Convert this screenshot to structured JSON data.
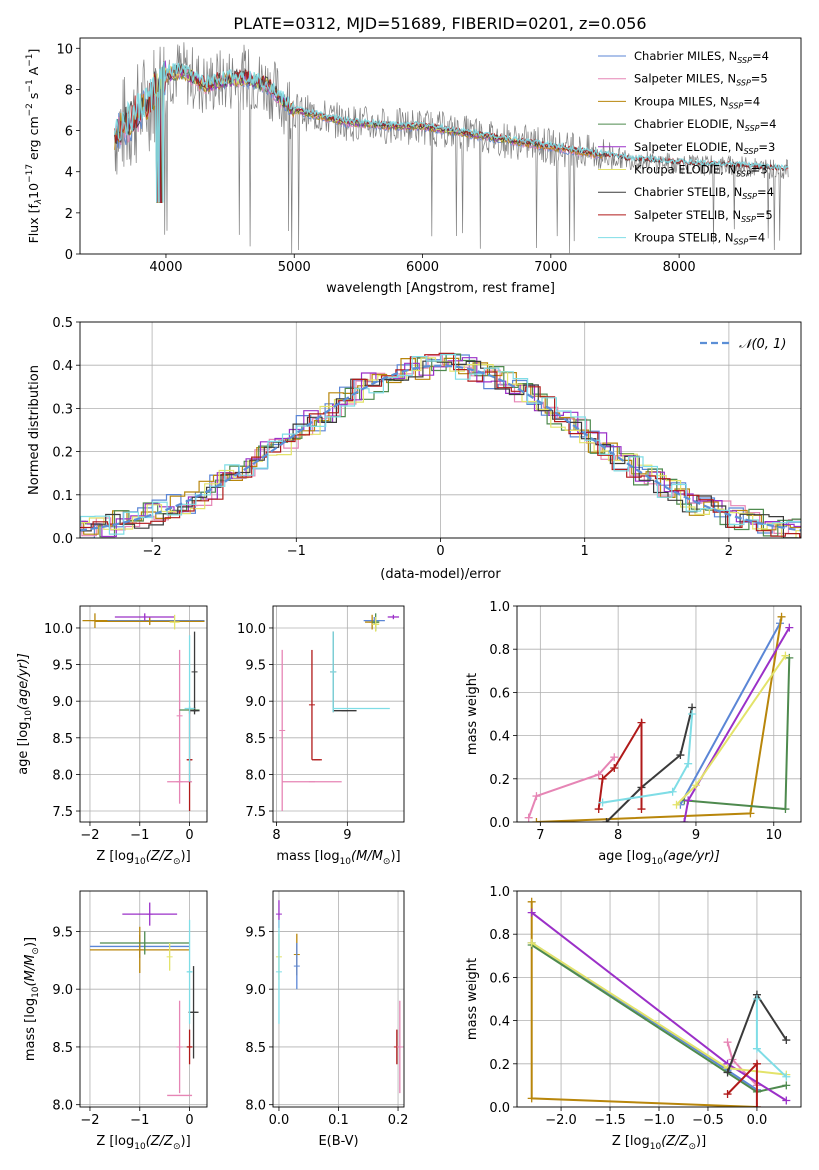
{
  "title": "PLATE=0312, MJD=51689, FIBERID=0201, z=0.056",
  "colors": {
    "Chabrier MILES": "#5b86d6",
    "Salpeter MILES": "#e685b5",
    "Kroupa MILES": "#b8860b",
    "Chabrier ELODIE": "#4e8a4e",
    "Salpeter ELODIE": "#9b30c8",
    "Kroupa ELODIE": "#e3e36a",
    "Chabrier STELIB": "#3a3a3a",
    "Salpeter STELIB": "#b01a1a",
    "Kroupa STELIB": "#7fdde6",
    "data": "#7f7f7f"
  },
  "chart_data": [
    {
      "id": "spectrum",
      "type": "line",
      "xlabel": "wavelength [Angstrom, rest frame]",
      "ylabel_main": "Flux [f",
      "ylabel_sub": "λ",
      "ylabel_rest": "10",
      "ylabel_exp": "−17",
      "ylabel_tail": " erg cm",
      "ylabel_exp2": "−2",
      "ylabel_tail2": " s",
      "ylabel_exp3": "−1",
      "ylabel_tail3": " A",
      "ylabel_exp4": "−1",
      "ylabel_end": "]",
      "xlim": [
        3330,
        8950
      ],
      "ylim": [
        0,
        10.5
      ],
      "xticks": [
        4000,
        5000,
        6000,
        7000,
        8000
      ],
      "yticks": [
        0,
        2,
        4,
        6,
        8,
        10
      ],
      "grid": false,
      "legend_position": "top-right",
      "continuum": {
        "x": [
          3600,
          3700,
          3800,
          3900,
          4000,
          4100,
          4200,
          4300,
          4400,
          4500,
          4600,
          4700,
          4800,
          4900,
          5000,
          5200,
          5400,
          5600,
          5800,
          6000,
          6200,
          6400,
          6600,
          6800,
          7000,
          7200,
          7400,
          7600,
          7800,
          8000,
          8200,
          8400,
          8600,
          8800
        ],
        "y": [
          6.0,
          6.3,
          7.0,
          7.8,
          8.7,
          8.9,
          8.6,
          8.2,
          8.4,
          8.5,
          8.6,
          8.4,
          8.2,
          7.5,
          7.0,
          6.7,
          6.4,
          6.3,
          6.2,
          6.2,
          6.0,
          5.8,
          5.6,
          5.4,
          5.2,
          5.0,
          4.8,
          4.6,
          4.5,
          4.4,
          4.3,
          4.3,
          4.2,
          4.1
        ]
      },
      "legend": [
        {
          "label": "Chabrier MILES, N",
          "sub": "SSP",
          "tail": "=4",
          "color_key": "Chabrier MILES"
        },
        {
          "label": "Salpeter MILES, N",
          "sub": "SSP",
          "tail": "=5",
          "color_key": "Salpeter MILES"
        },
        {
          "label": "Kroupa MILES, N",
          "sub": "SSP",
          "tail": "=4",
          "color_key": "Kroupa MILES"
        },
        {
          "label": "Chabrier ELODIE, N",
          "sub": "SSP",
          "tail": "=4",
          "color_key": "Chabrier ELODIE"
        },
        {
          "label": "Salpeter ELODIE, N",
          "sub": "SSP",
          "tail": "=3",
          "color_key": "Salpeter ELODIE"
        },
        {
          "label": "Kroupa ELODIE, N",
          "sub": "SSP",
          "tail": "=3",
          "color_key": "Kroupa ELODIE"
        },
        {
          "label": "Chabrier STELIB, N",
          "sub": "SSP",
          "tail": "=4",
          "color_key": "Chabrier STELIB"
        },
        {
          "label": "Salpeter STELIB, N",
          "sub": "SSP",
          "tail": "=5",
          "color_key": "Salpeter STELIB"
        },
        {
          "label": "Kroupa STELIB, N",
          "sub": "SSP",
          "tail": "=4",
          "color_key": "Kroupa STELIB"
        }
      ]
    },
    {
      "id": "residuals",
      "type": "histogram",
      "xlabel": "(data-model)/error",
      "ylabel": "Normed distribution",
      "xlim": [
        -2.5,
        2.5
      ],
      "ylim": [
        0,
        0.5
      ],
      "xticks": [
        -2,
        -1,
        0,
        1,
        2
      ],
      "yticks": [
        0.0,
        0.1,
        0.2,
        0.3,
        0.4,
        0.5
      ],
      "grid": true,
      "bin_width": 0.1,
      "normal_label": "𝒩(0, 1)",
      "normal_color": "#5b8fd6",
      "legend_position": "top-right"
    },
    {
      "id": "age_vs_Z",
      "type": "errorbar",
      "xlabel": "Z [log",
      "xlabel_sub": "10",
      "xlabel_tail": "(Z/Z",
      "xlabel_odot": "⊙",
      "xlabel_end": ")]",
      "ylabel": "age  [log",
      "ylabel_sub": "10",
      "ylabel_tail": "(age/yr)]",
      "xlim": [
        -2.2,
        0.35
      ],
      "ylim": [
        7.35,
        10.3
      ],
      "xticks": [
        -2,
        -1,
        0
      ],
      "yticks": [
        7.5,
        8.0,
        8.5,
        9.0,
        9.5,
        10.0
      ],
      "grid": true,
      "points": [
        {
          "model": "Chabrier MILES",
          "x": -0.8,
          "xerr": 1.1,
          "y": 10.1,
          "yerr": 0.05
        },
        {
          "model": "Salpeter MILES",
          "x": -0.2,
          "xerr": 0.25,
          "y": 7.9,
          "yerr": 0.3
        },
        {
          "model": "Salpeter MILES",
          "x": -0.2,
          "xerr": 0.0,
          "y": 8.8,
          "yerr": 0.9
        },
        {
          "model": "Kroupa MILES",
          "x": -1.9,
          "xerr": 0.25,
          "y": 10.1,
          "yerr": 0.1
        },
        {
          "model": "Kroupa MILES",
          "x": -0.8,
          "xerr": 1.1,
          "y": 10.09,
          "yerr": 0.05
        },
        {
          "model": "Chabrier ELODIE",
          "x": 0.0,
          "xerr": 0.2,
          "y": 8.88,
          "yerr": 0.05
        },
        {
          "model": "Salpeter ELODIE",
          "x": -0.9,
          "xerr": 0.6,
          "y": 10.15,
          "yerr": 0.05
        },
        {
          "model": "Kroupa ELODIE",
          "x": -0.3,
          "xerr": 0.1,
          "y": 10.08,
          "yerr": 0.1
        },
        {
          "model": "Chabrier STELIB",
          "x": 0.1,
          "xerr": 0.1,
          "y": 8.87,
          "yerr": 0.05
        },
        {
          "model": "Chabrier STELIB",
          "x": 0.1,
          "xerr": 0.0,
          "y": 9.4,
          "yerr": 0.55
        },
        {
          "model": "Salpeter STELIB",
          "x": 0.0,
          "xerr": 0.05,
          "y": 8.2,
          "yerr": 0.7
        },
        {
          "model": "Kroupa STELIB",
          "x": 0.0,
          "xerr": 0.1,
          "y": 8.9,
          "yerr": 1.0
        }
      ]
    },
    {
      "id": "age_vs_mass",
      "type": "errorbar",
      "xlabel": "mass [log",
      "xlabel_sub": "10",
      "xlabel_tail": "(M/M",
      "xlabel_odot": "⊙",
      "xlabel_end": ")]",
      "ylabel": "",
      "xlim": [
        7.95,
        9.8
      ],
      "ylim": [
        7.35,
        10.3
      ],
      "xticks": [
        8,
        9
      ],
      "yticks": [
        7.5,
        8.0,
        8.5,
        9.0,
        9.5,
        10.0
      ],
      "grid": true,
      "points": [
        {
          "model": "Salpeter MILES",
          "x": 8.5,
          "xerr": 0.42,
          "y": 7.9,
          "yerr": 0.0
        },
        {
          "model": "Salpeter MILES",
          "x": 8.08,
          "xerr": 0.0,
          "y": 8.6,
          "yerr": 1.1
        },
        {
          "model": "Salpeter STELIB",
          "x": 8.5,
          "xerr": 0.0,
          "y": 8.95,
          "yerr": 0.75
        },
        {
          "model": "Salpeter STELIB",
          "x": 8.57,
          "xerr": 0.07,
          "y": 8.2,
          "yerr": 0.0
        },
        {
          "model": "Chabrier STELIB",
          "x": 8.8,
          "xerr": 0.0,
          "y": 9.4,
          "yerr": 0.55
        },
        {
          "model": "Chabrier STELIB",
          "x": 8.96,
          "xerr": 0.17,
          "y": 8.87,
          "yerr": 0.0
        },
        {
          "model": "Kroupa STELIB",
          "x": 9.2,
          "xerr": 0.4,
          "y": 8.9,
          "yerr": 0.0
        },
        {
          "model": "Kroupa STELIB",
          "x": 8.8,
          "xerr": 0.0,
          "y": 9.4,
          "yerr": 0.55
        },
        {
          "model": "Chabrier MILES",
          "x": 9.38,
          "xerr": 0.15,
          "y": 10.1,
          "yerr": 0.05
        },
        {
          "model": "Kroupa MILES",
          "x": 9.35,
          "xerr": 0.1,
          "y": 10.08,
          "yerr": 0.1
        },
        {
          "model": "Chabrier ELODIE",
          "x": 9.4,
          "xerr": 0.05,
          "y": 10.08,
          "yerr": 0.12
        },
        {
          "model": "Salpeter ELODIE",
          "x": 9.65,
          "xerr": 0.08,
          "y": 10.15,
          "yerr": 0.03
        },
        {
          "model": "Kroupa ELODIE",
          "x": 9.4,
          "xerr": 0.05,
          "y": 10.05,
          "yerr": 0.1
        }
      ]
    },
    {
      "id": "massweight_vs_age",
      "type": "line",
      "xlabel": "age  [log",
      "xlabel_sub": "10",
      "xlabel_tail": "(age/yr)]",
      "ylabel": "mass weight",
      "xlim": [
        6.7,
        10.35
      ],
      "ylim": [
        0,
        1.0
      ],
      "xticks": [
        7,
        8,
        9,
        10
      ],
      "yticks": [
        0.0,
        0.2,
        0.4,
        0.6,
        0.8,
        1.0
      ],
      "grid": true,
      "series": [
        {
          "model": "Chabrier MILES",
          "x": [
            8.8,
            10.08
          ],
          "y": [
            0.08,
            0.92
          ]
        },
        {
          "model": "Salpeter MILES",
          "x": [
            6.85,
            6.95,
            7.75,
            7.95
          ],
          "y": [
            0.02,
            0.12,
            0.22,
            0.3
          ]
        },
        {
          "model": "Kroupa MILES",
          "x": [
            6.95,
            9.7,
            10.1
          ],
          "y": [
            0.0,
            0.04,
            0.95
          ]
        },
        {
          "model": "Chabrier ELODIE",
          "x": [
            8.85,
            10.15,
            10.2
          ],
          "y": [
            0.1,
            0.06,
            0.76
          ]
        },
        {
          "model": "Salpeter ELODIE",
          "x": [
            8.85,
            8.9,
            10.2
          ],
          "y": [
            0.0,
            0.1,
            0.9
          ]
        },
        {
          "model": "Kroupa ELODIE",
          "x": [
            8.75,
            9.0,
            10.15
          ],
          "y": [
            0.08,
            0.17,
            0.77
          ]
        },
        {
          "model": "Chabrier STELIB",
          "x": [
            7.85,
            8.3,
            8.8,
            8.95
          ],
          "y": [
            0.0,
            0.16,
            0.31,
            0.53
          ]
        },
        {
          "model": "Salpeter STELIB",
          "x": [
            7.75,
            7.8,
            7.95,
            8.3,
            8.3
          ],
          "y": [
            0.06,
            0.2,
            0.25,
            0.46,
            0.06
          ]
        },
        {
          "model": "Kroupa STELIB",
          "x": [
            7.8,
            8.7,
            8.9,
            8.95
          ],
          "y": [
            0.09,
            0.14,
            0.27,
            0.5
          ]
        }
      ]
    },
    {
      "id": "mass_vs_Z",
      "type": "errorbar",
      "xlabel": "Z [log",
      "xlabel_sub": "10",
      "xlabel_tail": "(Z/Z",
      "xlabel_odot": "⊙",
      "xlabel_end": ")]",
      "ylabel": "mass [log",
      "ylabel_sub": "10",
      "ylabel_tail": "(M/M",
      "ylabel_odot": "⊙",
      "ylabel_end": ")]",
      "xlim": [
        -2.2,
        0.35
      ],
      "ylim": [
        7.98,
        9.85
      ],
      "xticks": [
        -2,
        -1,
        0
      ],
      "yticks": [
        8.0,
        8.5,
        9.0,
        9.5
      ],
      "grid": true,
      "points": [
        {
          "model": "Chabrier MILES",
          "x": -1.0,
          "xerr": 1.0,
          "y": 9.37,
          "yerr": 0.1
        },
        {
          "model": "Kroupa MILES",
          "x": -1.0,
          "xerr": 1.0,
          "y": 9.34,
          "yerr": 0.2
        },
        {
          "model": "Salpeter MILES",
          "x": -0.2,
          "xerr": 0.25,
          "y": 8.08,
          "yerr": 0.0
        },
        {
          "model": "Salpeter MILES",
          "x": -0.2,
          "xerr": 0.0,
          "y": 8.5,
          "yerr": 0.4
        },
        {
          "model": "Chabrier ELODIE",
          "x": -0.9,
          "xerr": 0.9,
          "y": 9.4,
          "yerr": 0.1
        },
        {
          "model": "Salpeter ELODIE",
          "x": -0.8,
          "xerr": 0.55,
          "y": 9.65,
          "yerr": 0.1
        },
        {
          "model": "Kroupa ELODIE",
          "x": -0.4,
          "xerr": 0.0,
          "y": 9.28,
          "yerr": 0.12
        },
        {
          "model": "Chabrier STELIB",
          "x": 0.08,
          "xerr": 0.1,
          "y": 8.8,
          "yerr": 0.4
        },
        {
          "model": "Salpeter STELIB",
          "x": 0.0,
          "xerr": 0.05,
          "y": 8.5,
          "yerr": 0.15
        },
        {
          "model": "Kroupa STELIB",
          "x": 0.0,
          "xerr": 0.05,
          "y": 9.15,
          "yerr": 0.45
        }
      ]
    },
    {
      "id": "mass_vs_EBV",
      "type": "errorbar",
      "xlabel": "E(B-V)",
      "ylabel": "",
      "xlim": [
        -0.01,
        0.21
      ],
      "ylim": [
        7.98,
        9.85
      ],
      "xticks": [
        0.0,
        0.1,
        0.2
      ],
      "yticks": [
        8.0,
        8.5,
        9.0,
        9.5
      ],
      "grid": true,
      "points": [
        {
          "model": "Salpeter ELODIE",
          "x": 0.0,
          "xerr": 0.0,
          "y": 9.65,
          "yerr": 0.12
        },
        {
          "model": "Kroupa ELODIE",
          "x": 0.0,
          "xerr": 0.0,
          "y": 9.28,
          "yerr": 0.2
        },
        {
          "model": "Kroupa STELIB",
          "x": 0.0,
          "xerr": 0.0,
          "y": 9.15,
          "yerr": 0.45
        },
        {
          "model": "Kroupa MILES",
          "x": 0.03,
          "xerr": 0.0,
          "y": 9.3,
          "yerr": 0.18
        },
        {
          "model": "Chabrier MILES",
          "x": 0.03,
          "xerr": 0.0,
          "y": 9.2,
          "yerr": 0.2
        },
        {
          "model": "Salpeter STELIB",
          "x": 0.198,
          "xerr": 0.0,
          "y": 8.5,
          "yerr": 0.15
        },
        {
          "model": "Salpeter MILES",
          "x": 0.203,
          "xerr": 0.0,
          "y": 8.5,
          "yerr": 0.4
        }
      ]
    },
    {
      "id": "massweight_vs_Z",
      "type": "line",
      "xlabel": "Z [log",
      "xlabel_sub": "10",
      "xlabel_tail": "(Z/Z",
      "xlabel_odot": "⊙",
      "xlabel_end": ")]",
      "ylabel": "mass weight",
      "xlim": [
        -2.45,
        0.45
      ],
      "ylim": [
        0,
        1.0
      ],
      "xticks": [
        -2.0,
        -1.5,
        -1.0,
        -0.5,
        0.0
      ],
      "yticks": [
        0.0,
        0.2,
        0.4,
        0.6,
        0.8,
        1.0
      ],
      "grid": true,
      "series": [
        {
          "model": "Chabrier MILES",
          "x": [
            -2.3,
            -0.3,
            0.0
          ],
          "y": [
            0.76,
            0.17,
            0.08
          ]
        },
        {
          "model": "Salpeter MILES",
          "x": [
            -0.3,
            -0.25,
            0.0
          ],
          "y": [
            0.3,
            0.22,
            0.1
          ]
        },
        {
          "model": "Kroupa MILES",
          "x": [
            -2.3,
            -2.3,
            0.0
          ],
          "y": [
            0.95,
            0.04,
            0.0
          ]
        },
        {
          "model": "Chabrier ELODIE",
          "x": [
            -2.3,
            0.0,
            0.3
          ],
          "y": [
            0.75,
            0.07,
            0.1
          ]
        },
        {
          "model": "Salpeter ELODIE",
          "x": [
            -2.3,
            -0.3,
            0.3
          ],
          "y": [
            0.9,
            0.2,
            0.03
          ]
        },
        {
          "model": "Kroupa ELODIE",
          "x": [
            -2.3,
            -0.3,
            0.3
          ],
          "y": [
            0.76,
            0.18,
            0.15
          ]
        },
        {
          "model": "Chabrier STELIB",
          "x": [
            -0.3,
            0.0,
            0.3
          ],
          "y": [
            0.16,
            0.52,
            0.31
          ]
        },
        {
          "model": "Salpeter STELIB",
          "x": [
            -0.3,
            0.0,
            0.0
          ],
          "y": [
            0.06,
            0.2,
            0.0
          ]
        },
        {
          "model": "Kroupa STELIB",
          "x": [
            0.0,
            0.0,
            0.3
          ],
          "y": [
            0.5,
            0.27,
            0.14
          ]
        }
      ]
    }
  ]
}
